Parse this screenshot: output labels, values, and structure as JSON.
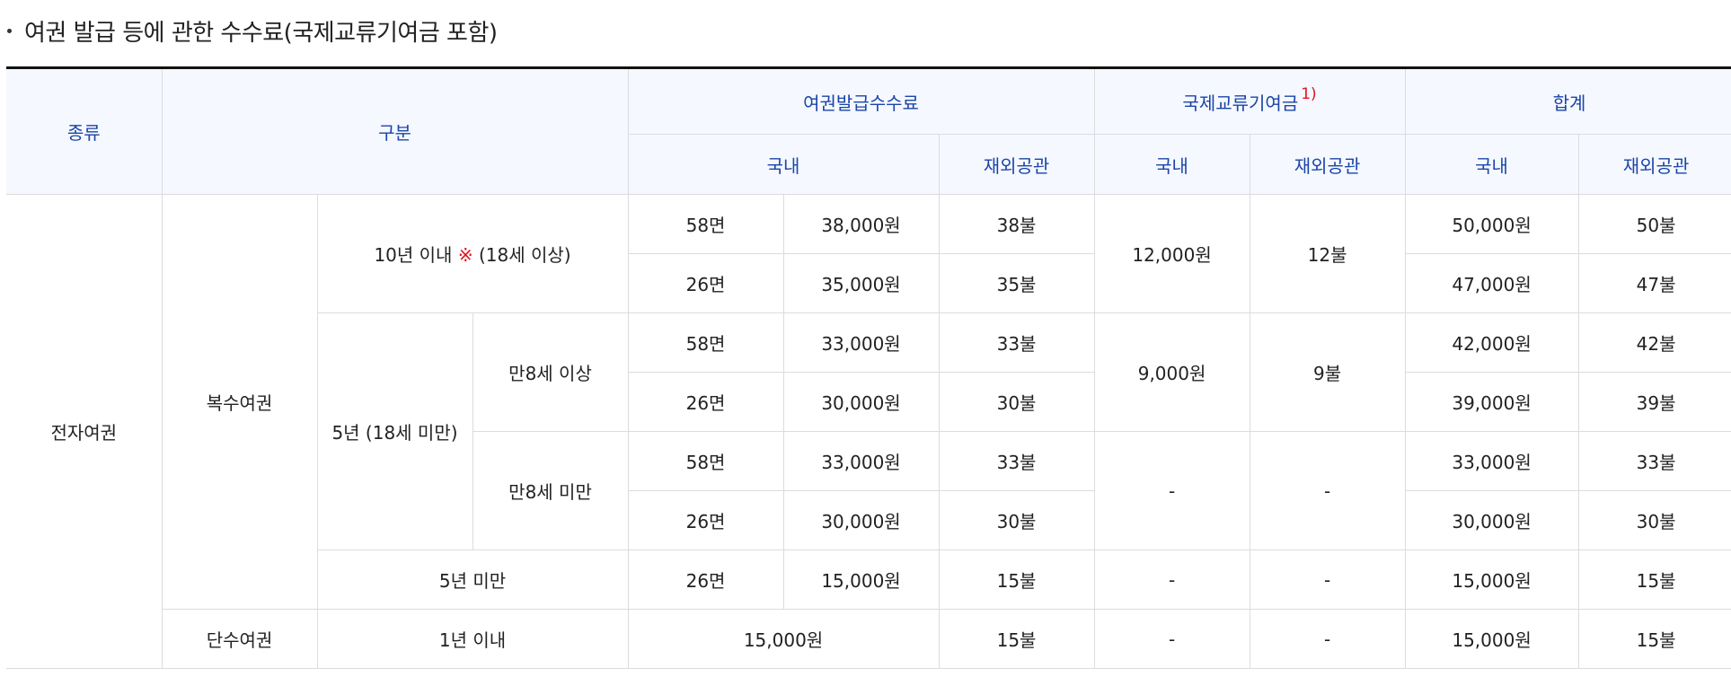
{
  "title": "여권 발급 등에 관한 수수료(국제교류기여금 포함)",
  "header": {
    "type": "종류",
    "category": "구분",
    "issuance_fee": "여권발급수수료",
    "exchange_fund": "국제교류기여금",
    "exchange_fund_note": "1)",
    "total": "합계",
    "domestic": "국내",
    "overseas": "재외공관"
  },
  "rows": {
    "electronic": "전자여권",
    "multiple": "복수여권",
    "single": "단수여권",
    "ten_year_prefix": "10년 이내",
    "ten_year_mark": "※",
    "ten_year_suffix": "(18세 이상)",
    "five_year": "5년 (18세 미만)",
    "age8_over": "만8세 이상",
    "age8_under": "만8세 미만",
    "under_five": "5년 미만",
    "one_year": "1년 이내",
    "r1": {
      "pages": "58면",
      "dom": "38,000원",
      "ovs": "38불",
      "tot_dom": "50,000원",
      "tot_ovs": "50불"
    },
    "r2": {
      "pages": "26면",
      "dom": "35,000원",
      "ovs": "35불",
      "tot_dom": "47,000원",
      "tot_ovs": "47불"
    },
    "r3": {
      "pages": "58면",
      "dom": "33,000원",
      "ovs": "33불",
      "tot_dom": "42,000원",
      "tot_ovs": "42불"
    },
    "r4": {
      "pages": "26면",
      "dom": "30,000원",
      "ovs": "30불",
      "tot_dom": "39,000원",
      "tot_ovs": "39불"
    },
    "r5": {
      "pages": "58면",
      "dom": "33,000원",
      "ovs": "33불",
      "tot_dom": "33,000원",
      "tot_ovs": "33불"
    },
    "r6": {
      "pages": "26면",
      "dom": "30,000원",
      "ovs": "30불",
      "tot_dom": "30,000원",
      "tot_ovs": "30불"
    },
    "r7": {
      "pages": "26면",
      "dom": "15,000원",
      "ovs": "15불",
      "ex_dom": "-",
      "ex_ovs": "-",
      "tot_dom": "15,000원",
      "tot_ovs": "15불"
    },
    "r8": {
      "dom": "15,000원",
      "ovs": "15불",
      "ex_dom": "-",
      "ex_ovs": "-",
      "tot_dom": "15,000원",
      "tot_ovs": "15불"
    },
    "ex10": {
      "dom": "12,000원",
      "ovs": "12불"
    },
    "ex5over": {
      "dom": "9,000원",
      "ovs": "9불"
    },
    "ex5under": {
      "dom": "-",
      "ovs": "-"
    }
  }
}
